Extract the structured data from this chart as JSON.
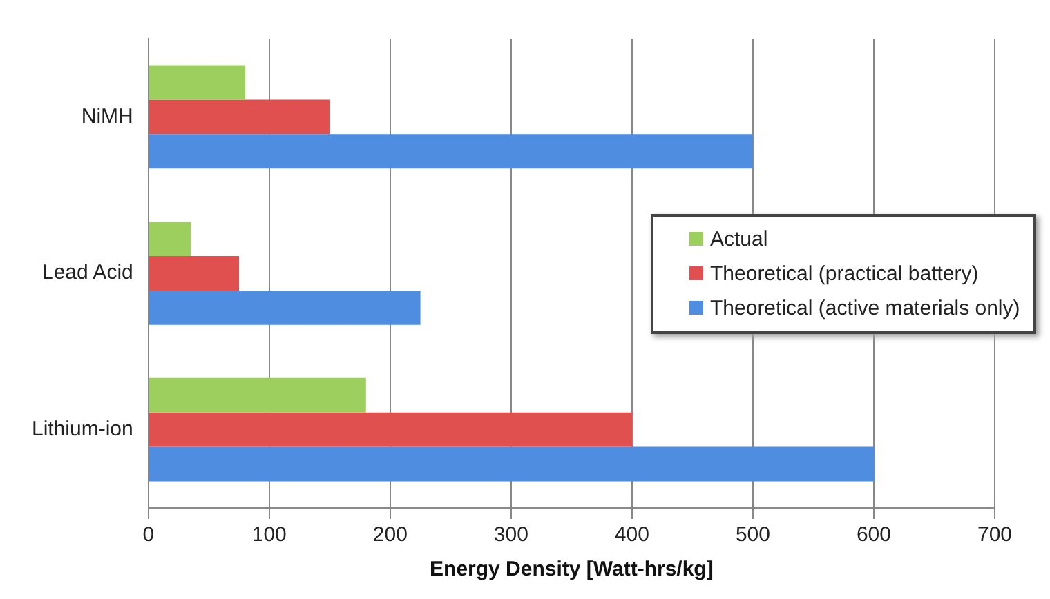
{
  "chart_data": {
    "type": "bar",
    "orientation": "horizontal",
    "xlabel": "Energy Density [Watt-hrs/kg]",
    "categories": [
      "NiMH",
      "Lead Acid",
      "Lithium-ion"
    ],
    "series": [
      {
        "name": "Actual",
        "color": "#9ccf5e",
        "values": [
          80,
          35,
          180
        ]
      },
      {
        "name": "Theoretical (practical battery)",
        "color": "#e0504f",
        "values": [
          150,
          75,
          400
        ]
      },
      {
        "name": "Theoretical (active materials only)",
        "color": "#4f8de0",
        "values": [
          500,
          225,
          600
        ]
      }
    ],
    "xlim": [
      0,
      700
    ],
    "xticks": [
      0,
      100,
      200,
      300,
      400,
      500,
      600,
      700
    ],
    "grid": "x",
    "legend": "right"
  }
}
